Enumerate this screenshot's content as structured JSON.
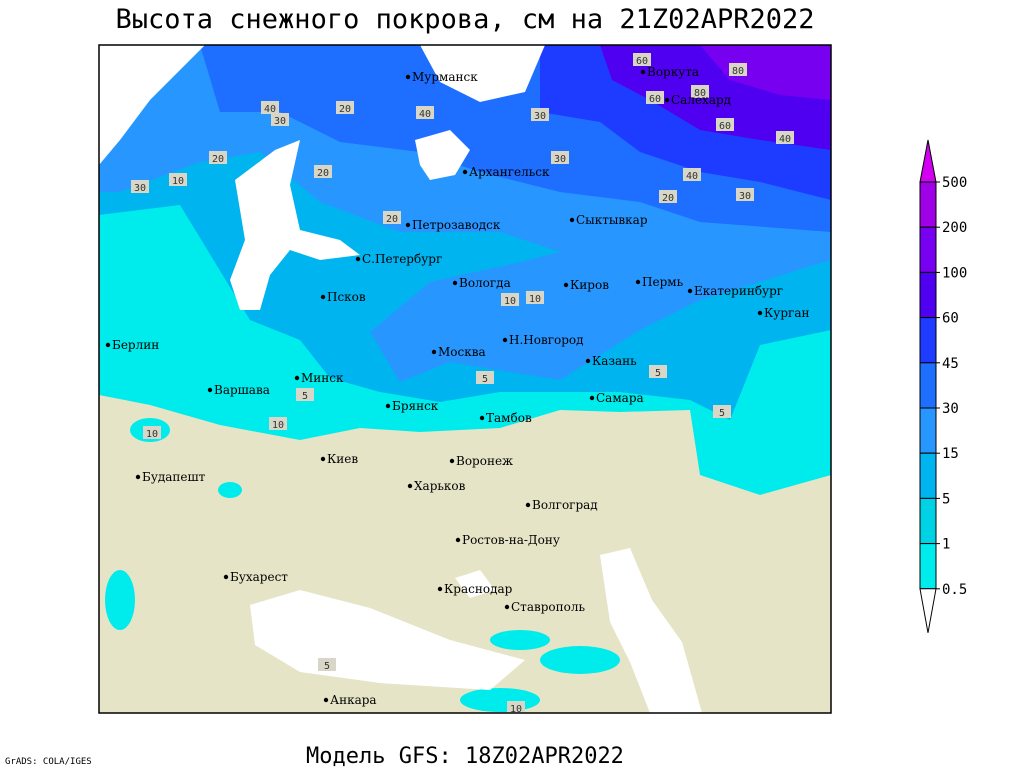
{
  "header": {
    "title": "Высота снежного покрова, см на 21Z02APR2022"
  },
  "map": {
    "cities": [
      "Мурманск",
      "Воркута",
      "Салехард",
      "Архангельск",
      "Сыктывкар",
      "Петрозаводск",
      "С.Петербург",
      "Вологда",
      "Киров",
      "Пермь",
      "Екатеринбург",
      "Курган",
      "Псков",
      "Берлин",
      "Н.Новгород",
      "Москва",
      "Казань",
      "Минск",
      "Варшава",
      "Самара",
      "Брянск",
      "Тамбов",
      "Киев",
      "Воронеж",
      "Будапешт",
      "Харьков",
      "Волгоград",
      "Ростов-на-Дону",
      "Бухарест",
      "Краснодар",
      "Ставрополь",
      "Анкара"
    ],
    "contour_labels": [
      60,
      80,
      80,
      60,
      60,
      40,
      40,
      40,
      30,
      30,
      20,
      20,
      30,
      30,
      40,
      20,
      20,
      30,
      20,
      10,
      10,
      10,
      5,
      5,
      5,
      10,
      5,
      10,
      5,
      10
    ]
  },
  "colorbar": {
    "levels": [
      500,
      200,
      100,
      60,
      45,
      30,
      15,
      5,
      1,
      0.5
    ],
    "colors": [
      "#d200f0",
      "#a000e6",
      "#7800f0",
      "#5000f0",
      "#1e3cff",
      "#1e6eff",
      "#2896ff",
      "#00b4f0",
      "#00d2e6",
      "#00ebeb",
      "#9ff5f5",
      "#ffffff"
    ]
  },
  "footer": {
    "model": "Модель GFS: 18Z02APR2022",
    "credit": "GrADS: COLA/IGES"
  }
}
